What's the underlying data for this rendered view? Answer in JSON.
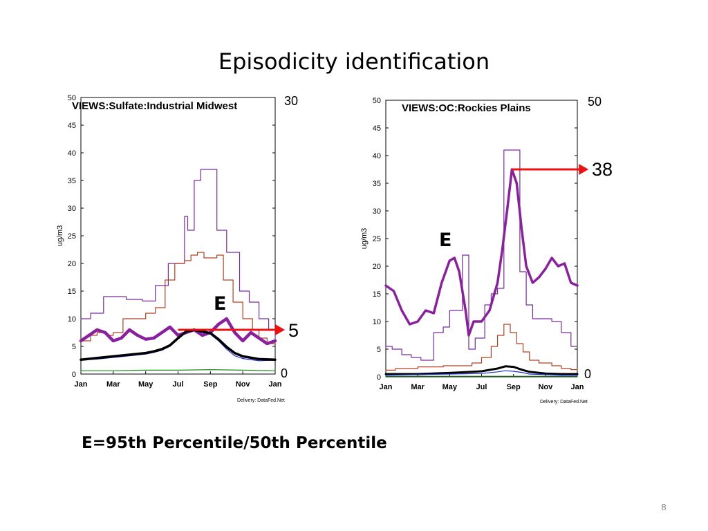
{
  "slide": {
    "title": "Episodicity  identification",
    "formula": "E=95th Percentile/50th Percentile",
    "page_number": "8"
  },
  "colors": {
    "p95": "#7a2aa0",
    "p80": "#b04020",
    "running": "#8a1fa0",
    "median": "#000000",
    "p25": "#1a2ad0",
    "min": "#1a8a1a",
    "arrow": "#ee1111"
  },
  "chart_data": [
    {
      "type": "line",
      "title": "VIEWS:Sulfate:Industrial Midwest",
      "ylabel": "ug/m3",
      "xlabel": "",
      "ylim": [
        0,
        50
      ],
      "yticks": [
        0,
        5,
        10,
        15,
        20,
        25,
        30,
        35,
        40,
        45,
        50
      ],
      "xlim": [
        1,
        13
      ],
      "months": [
        {
          "label": "Jan",
          "x": 1
        },
        {
          "label": "Mar",
          "x": 3
        },
        {
          "label": "May",
          "x": 5
        },
        {
          "label": "Jul",
          "x": 7
        },
        {
          "label": "Sep",
          "x": 9
        },
        {
          "label": "Nov",
          "x": 11
        },
        {
          "label": "Jan",
          "x": 13
        }
      ],
      "delivery": "Delivery: DataFed.Net",
      "right_axis": {
        "top_label": "30",
        "bottom_label": "0"
      },
      "annotation": {
        "label": "E",
        "value_label": "5",
        "arrow_from": [
          7.0,
          8.0
        ],
        "arrow_to": [
          13.6,
          8.0
        ]
      },
      "series": [
        {
          "key": "p95",
          "style": "step",
          "width": 1.2,
          "x": [
            1,
            1.6,
            2.4,
            3.8,
            4.8,
            5.6,
            6.4,
            7.4,
            7.6,
            8.0,
            8.4,
            9.0,
            9.4,
            10.0,
            10.8,
            11.4,
            12.0,
            12.6,
            13
          ],
          "y": [
            10,
            11,
            14,
            13.5,
            13.2,
            16,
            20,
            28.5,
            26,
            35,
            37,
            37,
            26,
            22,
            15,
            13,
            10,
            8,
            6
          ]
        },
        {
          "key": "p80",
          "style": "step",
          "width": 1.2,
          "x": [
            1,
            1.6,
            2.0,
            2.6,
            3.0,
            3.6,
            4.4,
            5.0,
            5.6,
            6.2,
            6.8,
            7.4,
            7.8,
            8.2,
            8.6,
            9.0,
            9.4,
            9.8,
            10.4,
            11.0,
            11.6,
            12.0,
            12.5,
            13
          ],
          "y": [
            6,
            7,
            7.5,
            7,
            7.5,
            10,
            10,
            11,
            12,
            17,
            20,
            20.5,
            21.5,
            22,
            21,
            21,
            21.5,
            17,
            13,
            10,
            8,
            6.5,
            5.5,
            6
          ]
        },
        {
          "key": "running",
          "style": "line",
          "width": 4.5,
          "x": [
            1,
            1.5,
            2,
            2.5,
            3,
            3.5,
            4,
            4.5,
            5,
            5.5,
            6,
            6.5,
            7,
            7.5,
            8,
            8.5,
            9,
            9.5,
            10,
            10.5,
            11,
            11.5,
            12,
            12.5,
            13
          ],
          "y": [
            6,
            7,
            8,
            7.5,
            6,
            6.5,
            8,
            7,
            6.3,
            6.5,
            7.5,
            8.5,
            7,
            7.5,
            8,
            7,
            7.5,
            9,
            10,
            7.5,
            6,
            7.5,
            6.5,
            5.5,
            6
          ]
        },
        {
          "key": "p25",
          "style": "line",
          "width": 1.2,
          "x": [
            1,
            2,
            3,
            4,
            5,
            5.5,
            6,
            6.5,
            7,
            7.5,
            8,
            8.5,
            9,
            9.5,
            10,
            10.5,
            11,
            12,
            13
          ],
          "y": [
            2.5,
            2.7,
            3.0,
            3.3,
            3.6,
            3.9,
            4.3,
            5.0,
            6.3,
            7.5,
            7.8,
            7.5,
            7.2,
            6.0,
            4.5,
            3.3,
            2.8,
            2.4,
            2.5
          ]
        },
        {
          "key": "median",
          "style": "line",
          "width": 3.5,
          "x": [
            1,
            2,
            3,
            4,
            5,
            5.5,
            6,
            6.5,
            7,
            7.5,
            8,
            8.5,
            9,
            9.5,
            10,
            10.5,
            11,
            12,
            13
          ],
          "y": [
            2.6,
            2.9,
            3.2,
            3.5,
            3.8,
            4.1,
            4.5,
            5.2,
            6.5,
            7.7,
            8.0,
            7.7,
            7.4,
            6.3,
            4.9,
            3.8,
            3.2,
            2.7,
            2.6
          ]
        },
        {
          "key": "min",
          "style": "line",
          "width": 1.2,
          "x": [
            1,
            3,
            5,
            7,
            9,
            11,
            13
          ],
          "y": [
            0.6,
            0.6,
            0.7,
            0.7,
            0.8,
            0.7,
            0.6
          ]
        }
      ]
    },
    {
      "type": "line",
      "title": "VIEWS:OC:Rockies Plains",
      "ylabel": "ug/m3",
      "xlabel": "",
      "ylim": [
        0,
        50
      ],
      "yticks": [
        0,
        5,
        10,
        15,
        20,
        25,
        30,
        35,
        40,
        45,
        50
      ],
      "xlim": [
        1,
        13
      ],
      "months": [
        {
          "label": "Jan",
          "x": 1
        },
        {
          "label": "Mar",
          "x": 3
        },
        {
          "label": "May",
          "x": 5
        },
        {
          "label": "Jul",
          "x": 7
        },
        {
          "label": "Sep",
          "x": 9
        },
        {
          "label": "Nov",
          "x": 11
        },
        {
          "label": "Jan",
          "x": 13
        }
      ],
      "delivery": "Delivery: DataFed.Net",
      "right_axis": {
        "top_label": "50",
        "bottom_label": "0"
      },
      "annotation": {
        "label": "E",
        "value_label": "38",
        "arrow_from": [
          8.9,
          37.5
        ],
        "arrow_to": [
          13.7,
          37.5
        ]
      },
      "series": [
        {
          "key": "p95",
          "style": "step",
          "width": 1.2,
          "x": [
            1,
            1.4,
            2,
            2.6,
            3.2,
            4.0,
            4.6,
            5.0,
            5.8,
            6.2,
            6.6,
            7.2,
            7.6,
            8.0,
            8.4,
            9.2,
            9.4,
            9.8,
            10.2,
            11.4,
            12.0,
            12.6,
            13
          ],
          "y": [
            5.5,
            5,
            4,
            3.5,
            3.0,
            8,
            9,
            12,
            22,
            5,
            7,
            13,
            15,
            16,
            41,
            41,
            19,
            13,
            10.5,
            10,
            8,
            5.5,
            5.5
          ]
        },
        {
          "key": "p80",
          "style": "step",
          "width": 1.2,
          "x": [
            1,
            1.6,
            3.0,
            4.6,
            5.6,
            6.4,
            7.0,
            7.6,
            8.0,
            8.4,
            8.8,
            9.2,
            9.6,
            10.0,
            10.6,
            11.4,
            12.0,
            12.6,
            13
          ],
          "y": [
            1.2,
            1.5,
            1.8,
            2.0,
            2.0,
            2.5,
            3.5,
            5.5,
            7.5,
            9.5,
            8,
            6,
            4.5,
            3,
            2.5,
            2.0,
            1.5,
            1.3,
            1.2
          ]
        },
        {
          "key": "running",
          "style": "line",
          "width": 3.5,
          "x": [
            1,
            1.5,
            2,
            2.5,
            3,
            3.5,
            4,
            4.5,
            5,
            5.3,
            5.6,
            6.0,
            6.2,
            6.5,
            7,
            7.5,
            8,
            8.3,
            8.6,
            8.9,
            9.2,
            9.5,
            9.8,
            10.2,
            10.6,
            11,
            11.4,
            11.8,
            12.2,
            12.6,
            13
          ],
          "y": [
            16.5,
            15.5,
            12,
            9.5,
            10,
            12,
            11.5,
            17,
            21,
            21.5,
            19,
            12,
            7.5,
            10,
            10,
            12,
            17,
            23,
            30,
            37.5,
            35,
            27,
            20,
            17,
            18,
            19.5,
            21.5,
            20,
            20.5,
            17,
            16.5
          ]
        },
        {
          "key": "median",
          "style": "line",
          "width": 3,
          "x": [
            1,
            3,
            5,
            7,
            8,
            8.5,
            9,
            9.5,
            10,
            11,
            12,
            13
          ],
          "y": [
            0.5,
            0.5,
            0.7,
            1.0,
            1.5,
            1.9,
            1.8,
            1.3,
            0.9,
            0.6,
            0.5,
            0.5
          ]
        },
        {
          "key": "p25",
          "style": "line",
          "width": 1.2,
          "x": [
            1,
            3,
            5,
            7,
            8,
            8.5,
            9,
            9.5,
            10,
            11,
            12,
            13
          ],
          "y": [
            0.3,
            0.4,
            0.5,
            0.6,
            0.9,
            1.1,
            1.0,
            0.8,
            0.5,
            0.4,
            0.3,
            0.3
          ]
        },
        {
          "key": "min",
          "style": "line",
          "width": 1.2,
          "x": [
            1,
            13
          ],
          "y": [
            0.1,
            0.1
          ]
        }
      ]
    }
  ]
}
